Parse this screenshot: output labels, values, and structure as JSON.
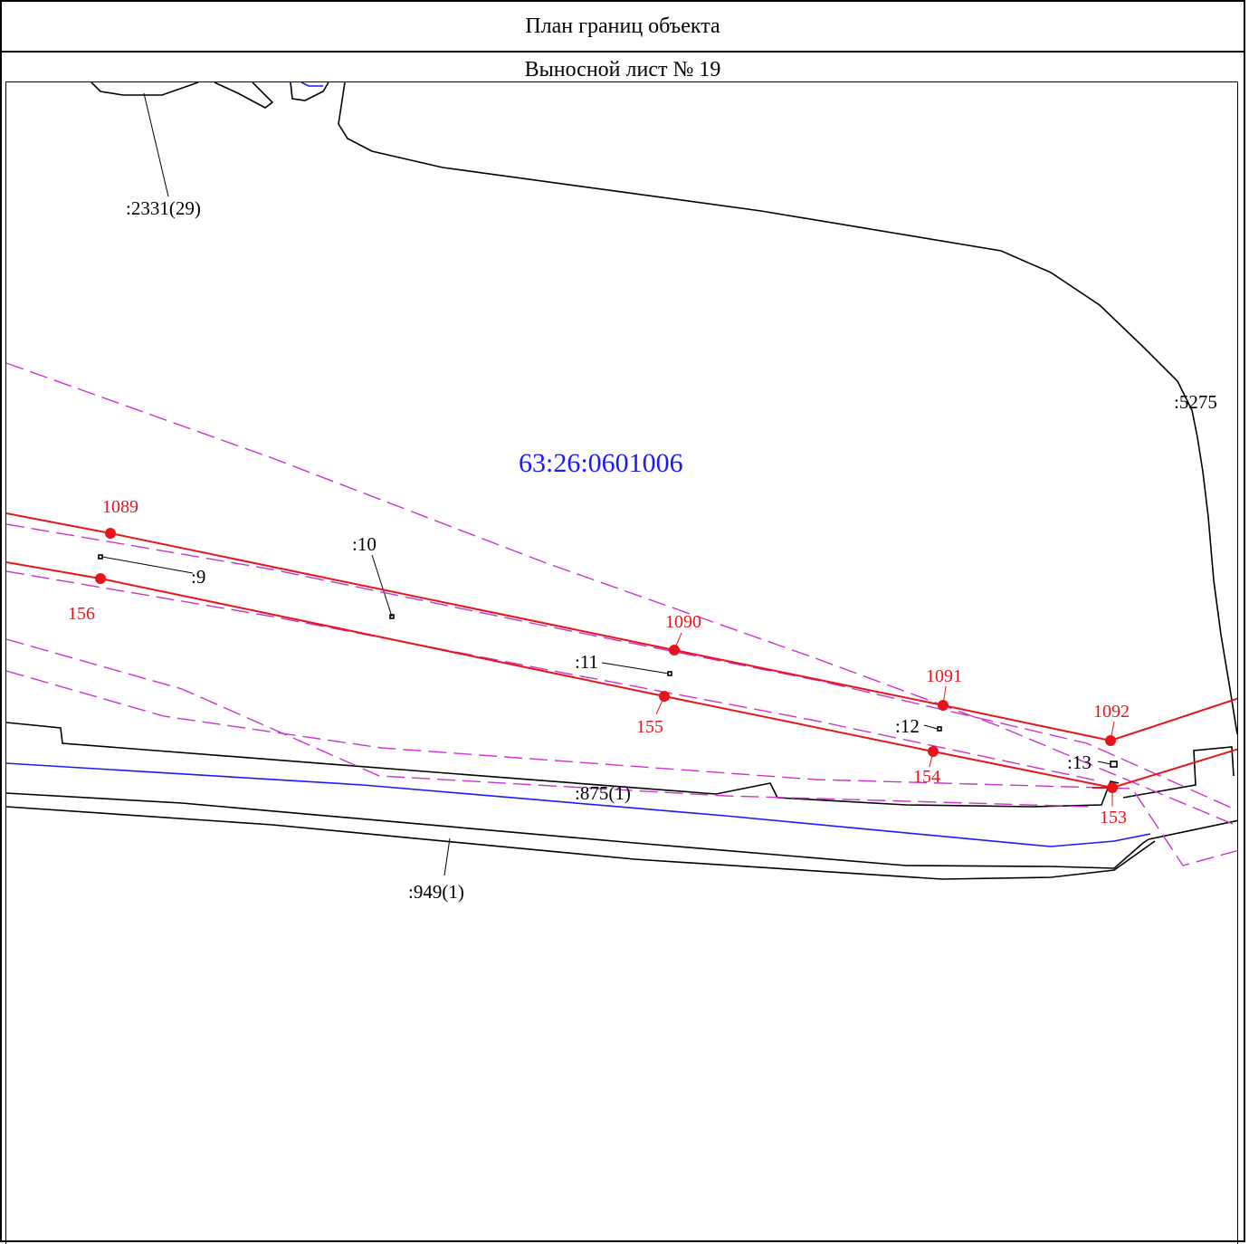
{
  "header": {
    "title": "План границ объекта",
    "sheet": "Выносной лист № 19"
  },
  "colors": {
    "boundary": "#e8141b",
    "parcel": "#000000",
    "zone": "#cc33cc",
    "cadastral_block": "#1a1aff",
    "water": "#1a1aff"
  },
  "map": {
    "block_number": "63:26:0601006",
    "boundary_points": [
      "1089",
      "1090",
      "1091",
      "1092",
      "156",
      "155",
      "154",
      "153"
    ],
    "parcel_labels": [
      ":2331(29)",
      ":5275",
      ":10",
      ":9",
      ":11",
      ":12",
      ":13",
      ":875(1)",
      ":949(1)"
    ]
  }
}
